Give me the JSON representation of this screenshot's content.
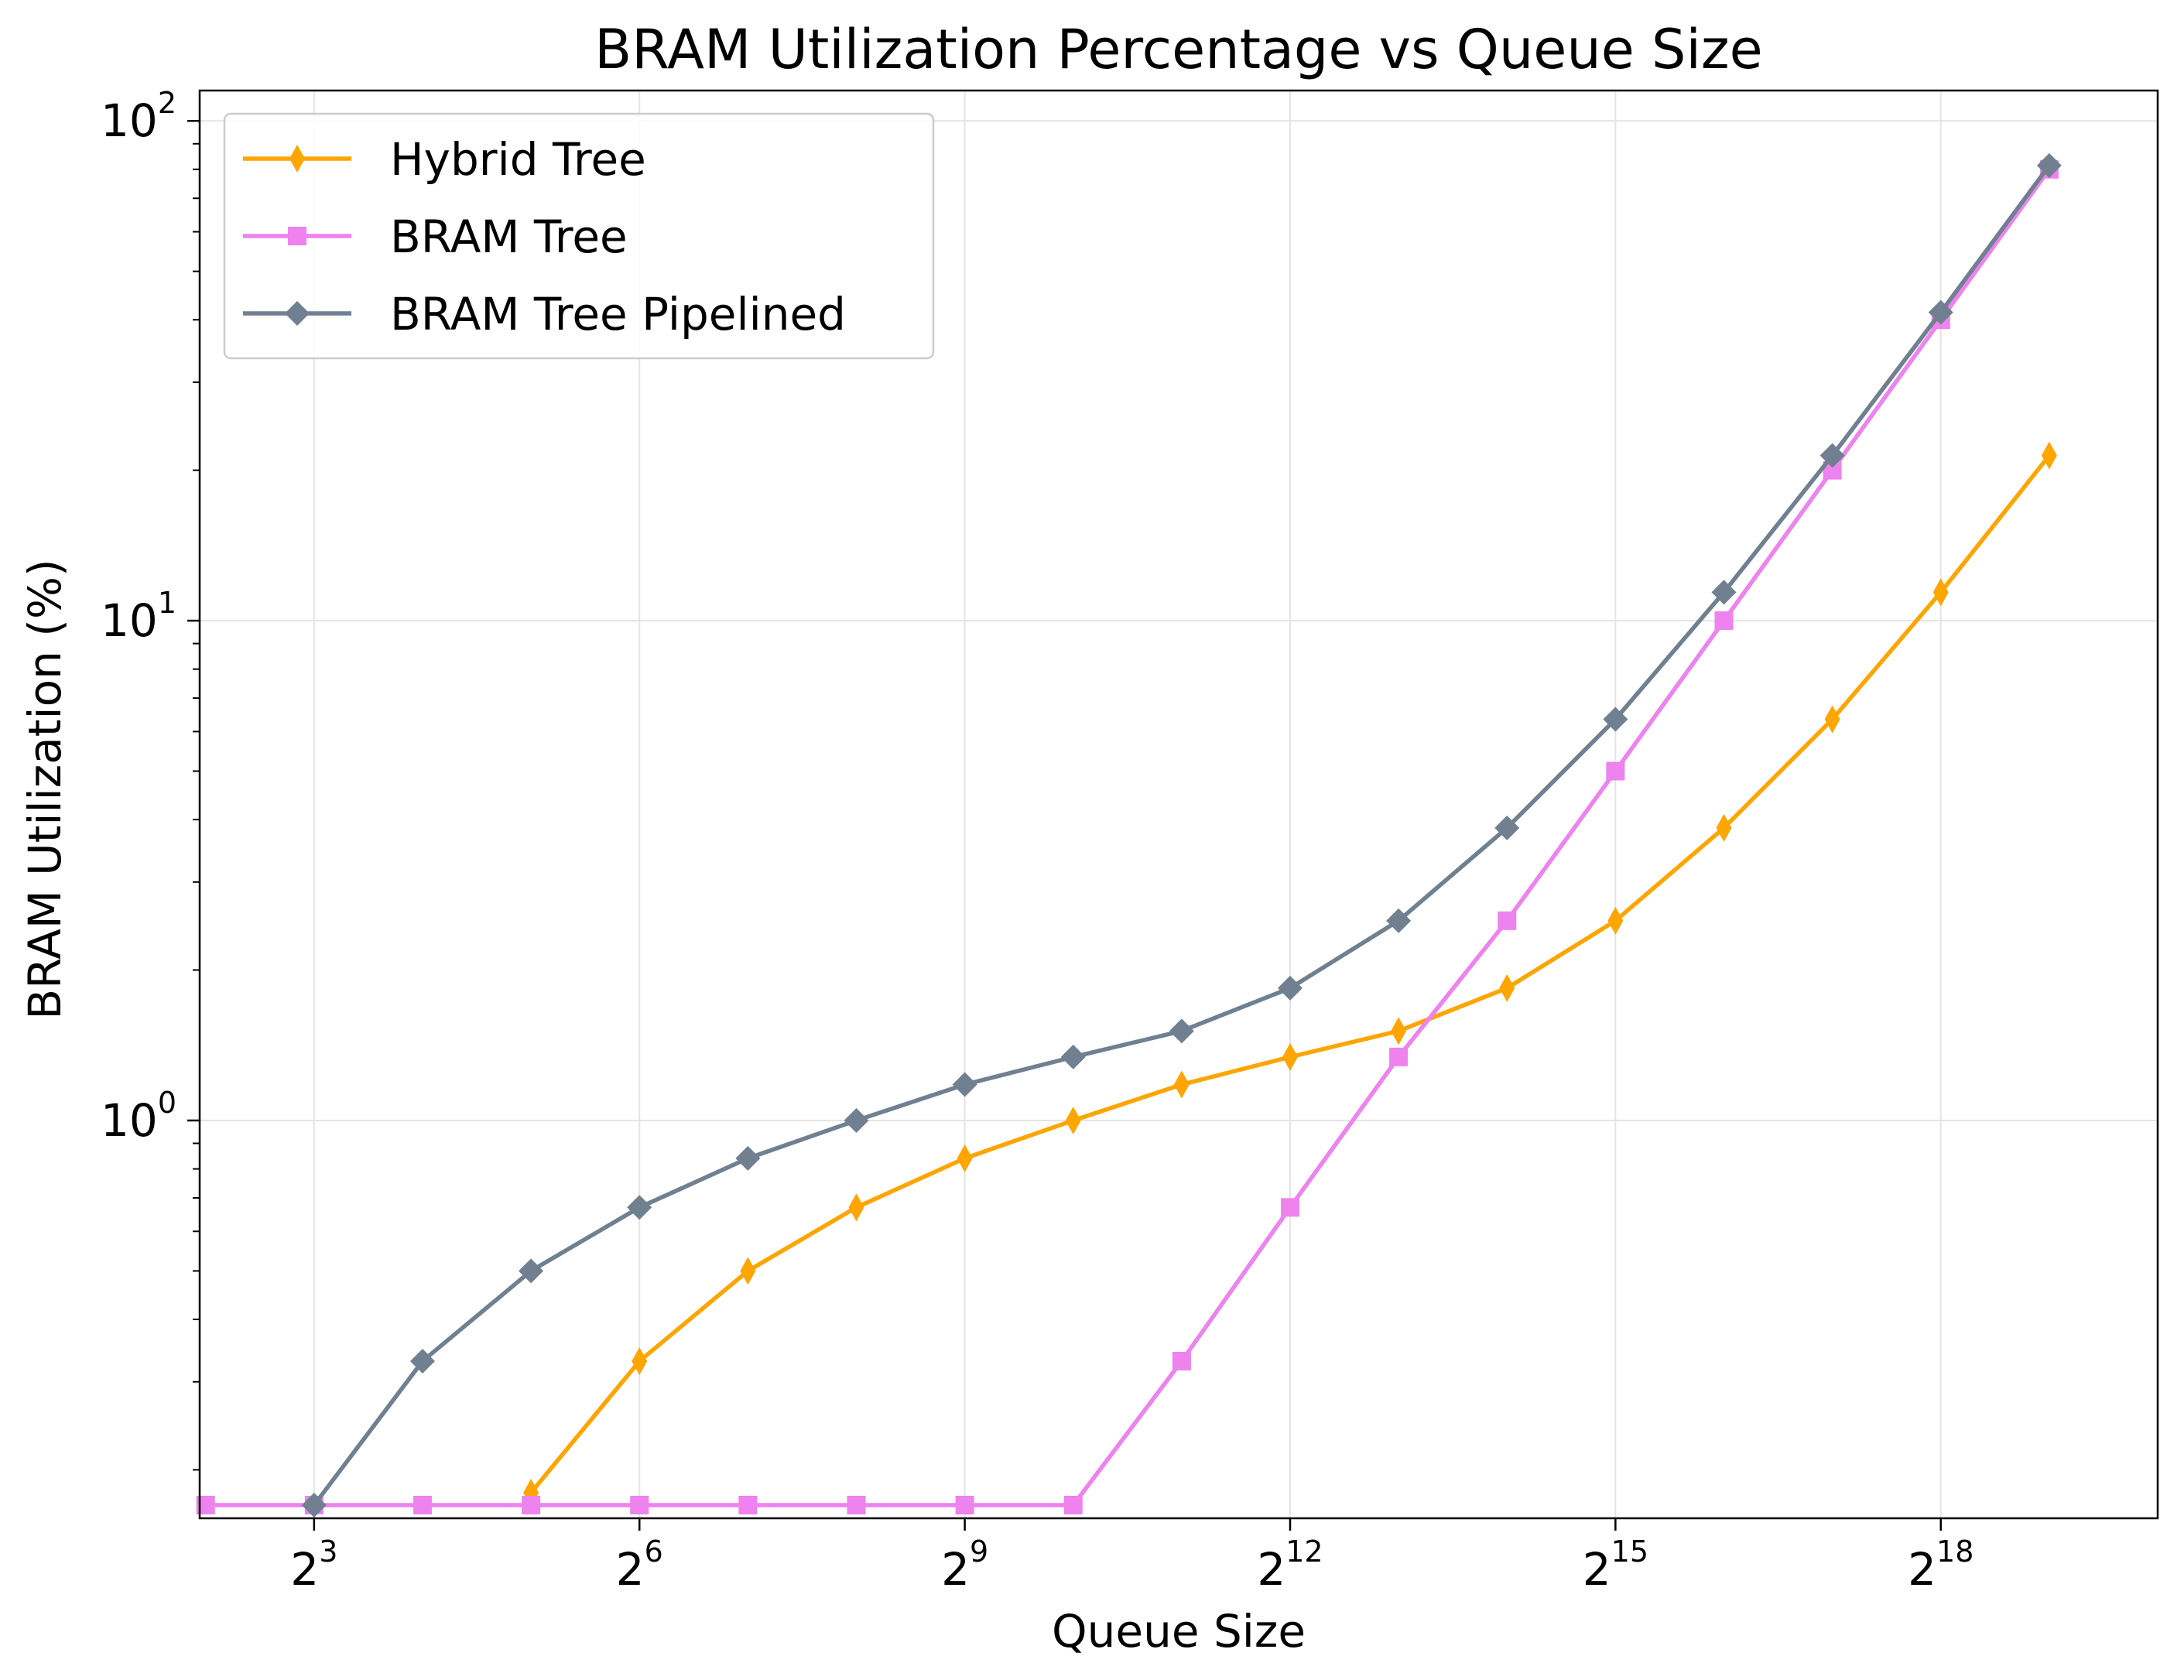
{
  "chart_data": {
    "type": "line",
    "title": "BRAM Utilization Percentage vs Queue Size",
    "xlabel": "Queue Size",
    "ylabel": "BRAM Utilization (%)",
    "x_scale": "log2",
    "y_scale": "log10",
    "xlim": [
      3.85,
      1048576
    ],
    "ylim": [
      0.16,
      115
    ],
    "x_ticks": [
      {
        "value": 8,
        "base": "2",
        "exp": "3"
      },
      {
        "value": 64,
        "base": "2",
        "exp": "6"
      },
      {
        "value": 512,
        "base": "2",
        "exp": "9"
      },
      {
        "value": 4096,
        "base": "2",
        "exp": "12"
      },
      {
        "value": 32768,
        "base": "2",
        "exp": "15"
      },
      {
        "value": 262144,
        "base": "2",
        "exp": "18"
      }
    ],
    "y_ticks": [
      {
        "value": 1,
        "base": "10",
        "exp": "0"
      },
      {
        "value": 10,
        "base": "10",
        "exp": "1"
      },
      {
        "value": 100,
        "base": "10",
        "exp": "2"
      }
    ],
    "grid": true,
    "legend": "top-left",
    "series": [
      {
        "name": "Hybrid Tree",
        "color": "#ffa500",
        "marker": "thin-diamond",
        "x": [
          32,
          64,
          128,
          256,
          512,
          1024,
          2048,
          4096,
          8192,
          16384,
          32768,
          65536,
          131072,
          262144,
          524288
        ],
        "values": [
          0.18,
          0.33,
          0.5,
          0.67,
          0.84,
          1.0,
          1.18,
          1.34,
          1.51,
          1.84,
          2.51,
          3.85,
          6.35,
          11.4,
          21.4
        ]
      },
      {
        "name": "BRAM Tree",
        "color": "#ee82ee",
        "marker": "square",
        "x": [
          4,
          8,
          16,
          32,
          64,
          128,
          256,
          512,
          1024,
          2048,
          4096,
          8192,
          16384,
          32768,
          65536,
          131072,
          262144,
          524288
        ],
        "values": [
          0.17,
          0.17,
          0.17,
          0.17,
          0.17,
          0.17,
          0.17,
          0.17,
          0.17,
          0.33,
          0.67,
          1.34,
          2.51,
          5.0,
          10.0,
          20.0,
          40.0,
          80.0
        ]
      },
      {
        "name": "BRAM Tree Pipelined",
        "color": "#708090",
        "marker": "diamond",
        "x": [
          8,
          16,
          32,
          64,
          128,
          256,
          512,
          1024,
          2048,
          4096,
          8192,
          16384,
          32768,
          65536,
          131072,
          262144,
          524288
        ],
        "values": [
          0.17,
          0.33,
          0.5,
          0.67,
          0.84,
          1.0,
          1.18,
          1.34,
          1.51,
          1.84,
          2.51,
          3.85,
          6.35,
          11.4,
          21.4,
          41.4,
          81.4
        ]
      }
    ]
  }
}
